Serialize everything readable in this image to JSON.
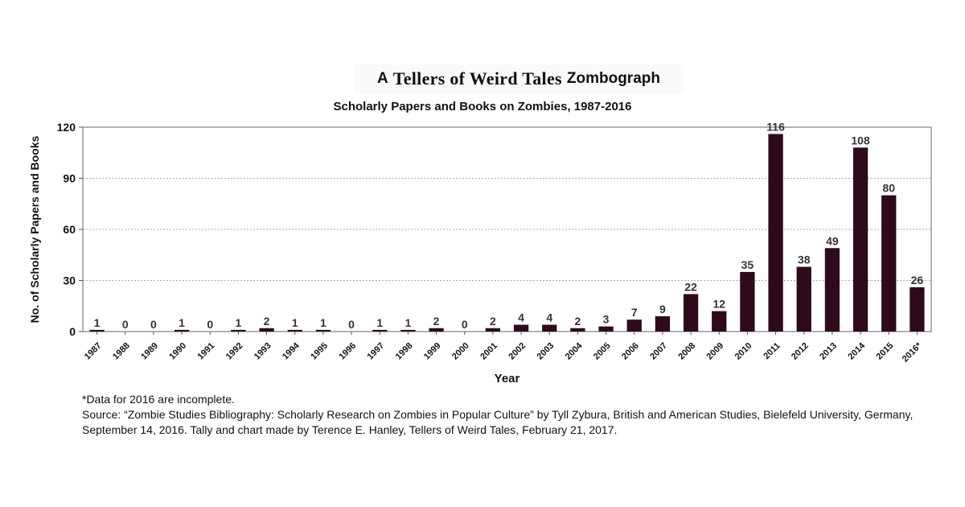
{
  "header": {
    "prefix": "A",
    "brand": "Tellers of Weird Tales",
    "suffix": "Zombograph"
  },
  "chart_data": {
    "type": "bar",
    "title": "Scholarly Papers and Books on Zombies, 1987-2016",
    "xlabel": "Year",
    "ylabel": "No. of Scholarly Papers and Books",
    "ylim": [
      0,
      120
    ],
    "yticks": [
      0,
      30,
      60,
      90,
      120
    ],
    "grid": true,
    "bar_color": "#2e0a1c",
    "categories": [
      "1987",
      "1988",
      "1989",
      "1990",
      "1991",
      "1992",
      "1993",
      "1994",
      "1995",
      "1996",
      "1997",
      "1998",
      "1999",
      "2000",
      "2001",
      "2002",
      "2003",
      "2004",
      "2005",
      "2006",
      "2007",
      "2008",
      "2009",
      "2010",
      "2011",
      "2012",
      "2013",
      "2014",
      "2015",
      "2016*"
    ],
    "values": [
      1,
      0,
      0,
      1,
      0,
      1,
      2,
      1,
      1,
      0,
      1,
      1,
      2,
      0,
      2,
      4,
      4,
      2,
      3,
      7,
      9,
      22,
      12,
      35,
      116,
      38,
      49,
      108,
      80,
      26
    ]
  },
  "footnotes": {
    "note": "*Data for 2016 are incomplete.",
    "source": "Source: “Zombie Studies Bibliography: Scholarly Research on Zombies in Popular Culture” by Tyll Zybura, British and American Studies, Bielefeld University, Germany, September 14, 2016. Tally and chart made by Terence E. Hanley, Tellers of Weird Tales, February 21, 2017."
  }
}
